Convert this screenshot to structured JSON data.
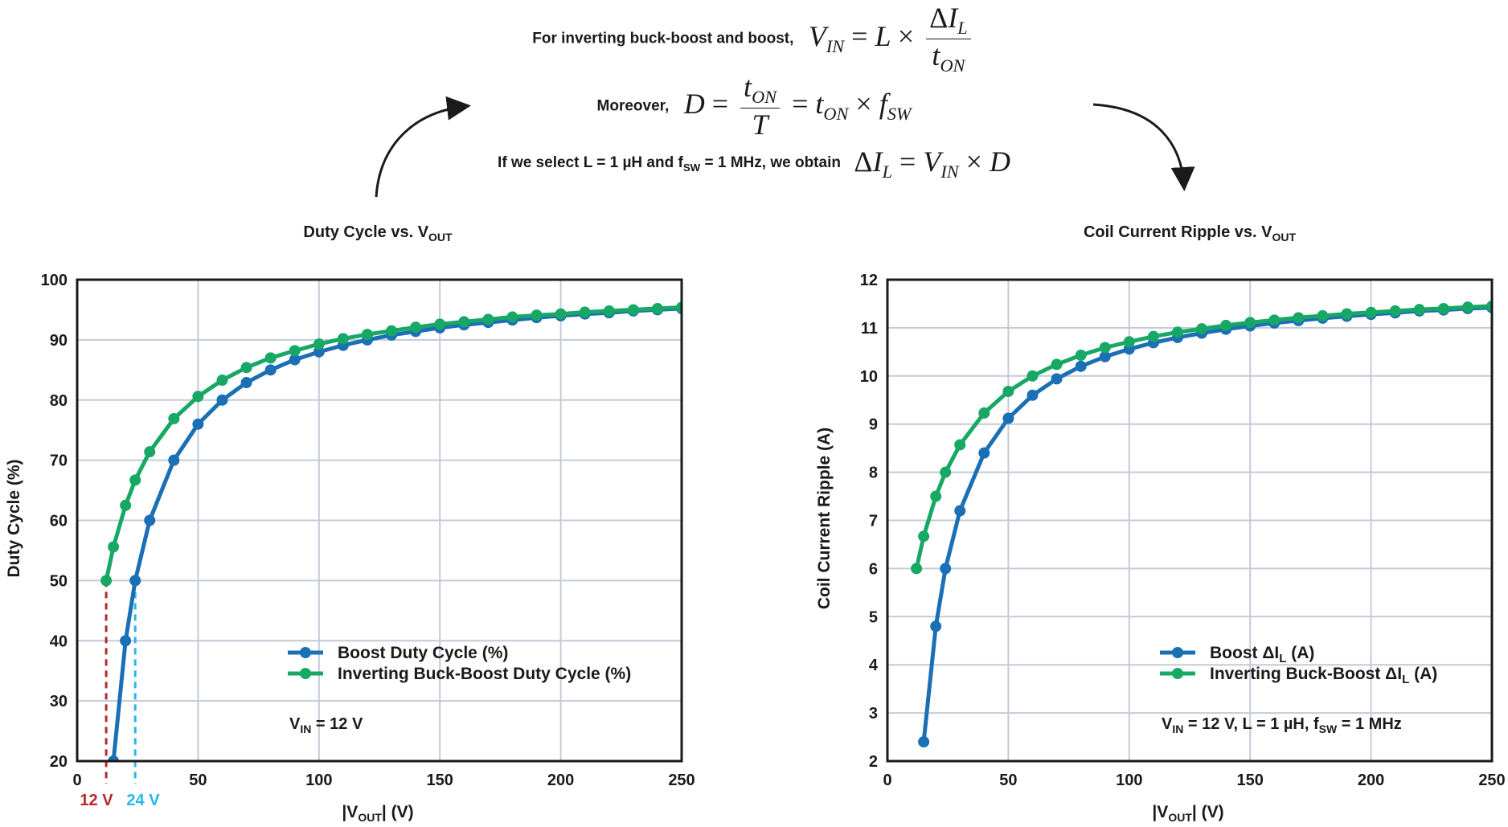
{
  "equations": {
    "line1_label": "For inverting buck-boost and boost,",
    "line2_label": "Moreover,",
    "line3_label_pre": "If we select L = 1 µH and f",
    "line3_label_sub": "SW",
    "line3_label_post": " = 1 MHz, we obtain"
  },
  "colors": {
    "boost": "#1a6fb5",
    "inverting": "#16a864",
    "grid": "#c4cad8",
    "marker12": "#b22a2e",
    "marker24": "#29b6e8"
  },
  "chart_data": [
    {
      "type": "line",
      "title_pre": "Duty Cycle vs. V",
      "title_sub": "OUT",
      "xlabel_pre": "|V",
      "xlabel_sub": "OUT",
      "xlabel_post": "| (V)",
      "ylabel": "Duty Cycle (%)",
      "xlim": [
        0,
        250
      ],
      "ylim": [
        20,
        100
      ],
      "xticks": [
        0,
        50,
        100,
        150,
        200,
        250
      ],
      "yticks": [
        20,
        30,
        40,
        50,
        60,
        70,
        80,
        90,
        100
      ],
      "grid": true,
      "legend_position": "bottom-right",
      "series": [
        {
          "name_pre": "Boost Duty Cycle (%)",
          "name_sub": "",
          "name_post": "",
          "x": [
            15,
            20,
            24,
            30,
            40,
            50,
            60,
            70,
            80,
            90,
            100,
            110,
            120,
            130,
            140,
            150,
            160,
            170,
            180,
            190,
            200,
            210,
            220,
            230,
            240,
            250
          ],
          "y": [
            20,
            40,
            50,
            60,
            70,
            76,
            80,
            82.9,
            85,
            86.7,
            88,
            89.1,
            90,
            90.8,
            91.4,
            92,
            92.5,
            92.9,
            93.3,
            93.7,
            94,
            94.3,
            94.5,
            94.8,
            95,
            95.2
          ]
        },
        {
          "name_pre": "Inverting Buck-Boost Duty Cycle (%)",
          "name_sub": "",
          "name_post": "",
          "x": [
            12,
            15,
            20,
            24,
            30,
            40,
            50,
            60,
            70,
            80,
            90,
            100,
            110,
            120,
            130,
            140,
            150,
            160,
            170,
            180,
            190,
            200,
            210,
            220,
            230,
            240,
            250
          ],
          "y": [
            50,
            55.6,
            62.5,
            66.7,
            71.4,
            76.9,
            80.6,
            83.3,
            85.4,
            87,
            88.2,
            89.3,
            90.2,
            90.9,
            91.5,
            92.1,
            92.6,
            93,
            93.4,
            93.8,
            94.1,
            94.3,
            94.6,
            94.8,
            95,
            95.2,
            95.4
          ]
        }
      ],
      "annotations": {
        "note_pre": "V",
        "note_sub": "IN",
        "note_post": " = 12 V",
        "marker12_label": "12 V",
        "marker12_x": 12,
        "marker12_y": 50,
        "marker24_label": "24 V",
        "marker24_x": 24,
        "marker24_y": 50
      }
    },
    {
      "type": "line",
      "title_pre": "Coil Current Ripple vs. V",
      "title_sub": "OUT",
      "xlabel_pre": "|V",
      "xlabel_sub": "OUT",
      "xlabel_post": "| (V)",
      "ylabel": "Coil Current Ripple (A)",
      "xlim": [
        0,
        250
      ],
      "ylim": [
        2,
        12
      ],
      "xticks": [
        0,
        50,
        100,
        150,
        200,
        250
      ],
      "yticks": [
        2,
        3,
        4,
        5,
        6,
        7,
        8,
        9,
        10,
        11,
        12
      ],
      "grid": true,
      "legend_position": "bottom-right",
      "series": [
        {
          "name_pre": "Boost ΔI",
          "name_sub": "L",
          "name_post": " (A)",
          "x": [
            15,
            20,
            24,
            30,
            40,
            50,
            60,
            70,
            80,
            90,
            100,
            110,
            120,
            130,
            140,
            150,
            160,
            170,
            180,
            190,
            200,
            210,
            220,
            230,
            240,
            250
          ],
          "y": [
            2.4,
            4.8,
            6,
            7.2,
            8.4,
            9.12,
            9.6,
            9.94,
            10.2,
            10.4,
            10.56,
            10.69,
            10.8,
            10.89,
            10.97,
            11.04,
            11.1,
            11.15,
            11.2,
            11.24,
            11.28,
            11.31,
            11.35,
            11.37,
            11.4,
            11.42
          ]
        },
        {
          "name_pre": "Inverting Buck-Boost ΔI",
          "name_sub": "L",
          "name_post": " (A)",
          "x": [
            12,
            15,
            20,
            24,
            30,
            40,
            50,
            60,
            70,
            80,
            90,
            100,
            110,
            120,
            130,
            140,
            150,
            160,
            170,
            180,
            190,
            200,
            210,
            220,
            230,
            240,
            250
          ],
          "y": [
            6,
            6.67,
            7.5,
            8,
            8.57,
            9.23,
            9.68,
            10,
            10.24,
            10.43,
            10.59,
            10.71,
            10.82,
            10.91,
            10.98,
            11.05,
            11.11,
            11.16,
            11.21,
            11.25,
            11.29,
            11.32,
            11.35,
            11.38,
            11.4,
            11.43,
            11.45
          ]
        }
      ],
      "annotations": {
        "note_pre": "V",
        "note_sub": "IN",
        "note_post": " = 12 V, L = 1 µH, f",
        "note_sub2": "SW",
        "note_post2": " = 1 MHz"
      }
    }
  ]
}
